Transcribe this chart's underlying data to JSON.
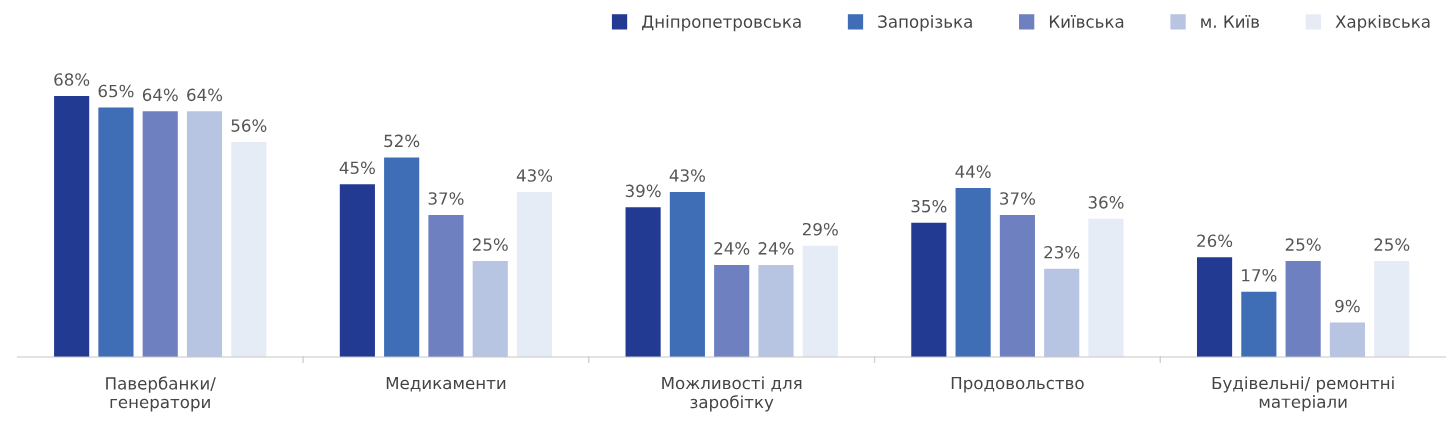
{
  "chart_data": {
    "type": "bar",
    "categories": [
      "Павербанки/\nгенератори",
      "Медикаменти",
      "Можливості для\nзаробітку",
      "Продовольство",
      "Будівельні/ ремонтні\nматеріали"
    ],
    "series": [
      {
        "name": "Дніпропетровська",
        "color": "#233a93",
        "values": [
          68,
          45,
          39,
          35,
          26
        ],
        "value_labels": [
          "68%",
          "45%",
          "39%",
          "35%",
          "26%"
        ]
      },
      {
        "name": "Запорізька",
        "color": "#3f6eb7",
        "values": [
          65,
          52,
          43,
          44,
          17
        ],
        "value_labels": [
          "65%",
          "52%",
          "43%",
          "44%",
          "17%"
        ]
      },
      {
        "name": "Київська",
        "color": "#6f80c0",
        "values": [
          64,
          37,
          24,
          37,
          25
        ],
        "value_labels": [
          "64%",
          "37%",
          "24%",
          "37%",
          "25%"
        ]
      },
      {
        "name": "м. Київ",
        "color": "#b7c4e2",
        "values": [
          64,
          25,
          24,
          23,
          9
        ],
        "value_labels": [
          "64%",
          "25%",
          "24%",
          "23%",
          "9%"
        ]
      },
      {
        "name": "Харківська",
        "color": "#e6ecf6",
        "values": [
          56,
          43,
          29,
          36,
          25
        ],
        "value_labels": [
          "56%",
          "43%",
          "29%",
          "36%",
          "25%"
        ]
      }
    ],
    "legend": "top right",
    "grid": false
  }
}
